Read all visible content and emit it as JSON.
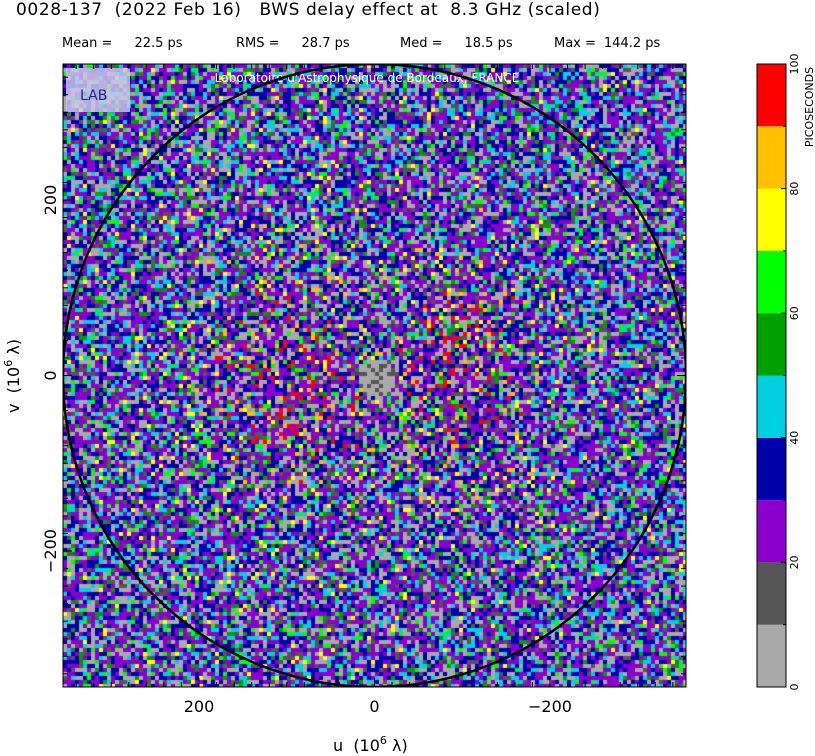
{
  "header": {
    "title": "0028-137  (2022 Feb 16)   BWS delay effect at  8.3 GHz (scaled)",
    "stats": [
      {
        "label": "Mean =",
        "value": "22.5 ps"
      },
      {
        "label": "RMS =",
        "value": "28.7 ps"
      },
      {
        "label": "Med =",
        "value": "18.5 ps"
      },
      {
        "label": "Max =",
        "value": "144.2 ps"
      }
    ]
  },
  "watermark": {
    "text": "Laboratoire d'Astrophysique de Bordeaux, FRANCE",
    "logo_text": "LAB"
  },
  "chart_data": {
    "type": "heatmap",
    "title": "0028-137  (2022 Feb 16)   BWS delay effect at  8.3 GHz (scaled)",
    "xlabel": "u  (10^6 λ)",
    "ylabel": "v  (10^6 λ)",
    "x_ticks": [
      {
        "value": 200,
        "label": "200"
      },
      {
        "value": 0,
        "label": "0"
      },
      {
        "value": -200,
        "label": "−200"
      }
    ],
    "y_ticks": [
      {
        "value": 200,
        "label": "200"
      },
      {
        "value": 0,
        "label": "0"
      },
      {
        "value": -200,
        "label": "−200"
      }
    ],
    "xlim": [
      355,
      -355
    ],
    "ylim": [
      -355,
      355
    ],
    "circle_radius": 355,
    "colorbar": {
      "label": "PICOSECONDS",
      "range": [
        0,
        100
      ],
      "tick_values": [
        0,
        20,
        40,
        60,
        80,
        100
      ],
      "bins": [
        {
          "from": 0,
          "to": 10,
          "color": "#a9a9a9"
        },
        {
          "from": 10,
          "to": 20,
          "color": "#555555"
        },
        {
          "from": 20,
          "to": 30,
          "color": "#8b00cc"
        },
        {
          "from": 30,
          "to": 40,
          "color": "#0000aa"
        },
        {
          "from": 40,
          "to": 50,
          "color": "#00d0e0"
        },
        {
          "from": 50,
          "to": 60,
          "color": "#00a000"
        },
        {
          "from": 60,
          "to": 70,
          "color": "#00ff00"
        },
        {
          "from": 70,
          "to": 80,
          "color": "#ffff00"
        },
        {
          "from": 80,
          "to": 90,
          "color": "#ffc000"
        },
        {
          "from": 90,
          "to": 100,
          "color": "#ff0000"
        }
      ]
    },
    "statistics": {
      "mean_ps": 22.5,
      "rms_ps": 28.7,
      "median_ps": 18.5,
      "max_ps": 144.2
    }
  }
}
